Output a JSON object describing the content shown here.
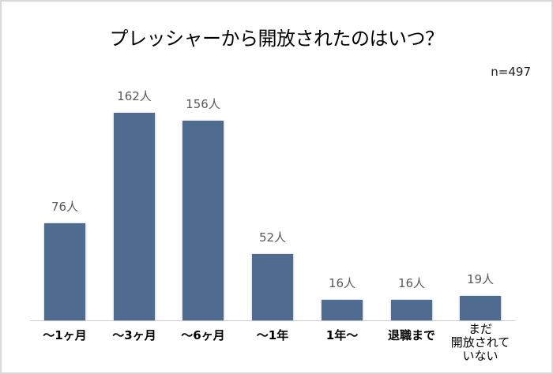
{
  "title": "プレッシャーから開放されたのはいつ？",
  "sample_size": "n=497",
  "colors": {
    "bar": "#4f6b8f",
    "value_label": "#595959",
    "axis": "#d0d0d0",
    "border": "#d9d9d9"
  },
  "bars": [
    {
      "category": "～1ヶ月",
      "value": 76,
      "label": "76人"
    },
    {
      "category": "～3ヶ月",
      "value": 162,
      "label": "162人"
    },
    {
      "category": "～6ヶ月",
      "value": 156,
      "label": "156人"
    },
    {
      "category": "～1年",
      "value": 52,
      "label": "52人"
    },
    {
      "category": "1年～",
      "value": 16,
      "label": "16人"
    },
    {
      "category": "退職まで",
      "value": 16,
      "label": "16人"
    },
    {
      "category": "まだ開放されていない",
      "value": 19,
      "label": "19人",
      "category_lines": [
        "まだ",
        "開放されて",
        "いない"
      ]
    }
  ],
  "chart_data": {
    "type": "bar",
    "title": "プレッシャーから開放されたのはいつ？",
    "subtitle": "n=497",
    "categories": [
      "～1ヶ月",
      "～3ヶ月",
      "～6ヶ月",
      "～1年",
      "1年～",
      "退職まで",
      "まだ開放されていない"
    ],
    "values": [
      76,
      162,
      156,
      52,
      16,
      16,
      19
    ],
    "data_labels": [
      "76人",
      "162人",
      "156人",
      "52人",
      "16人",
      "16人",
      "19人"
    ],
    "unit": "人",
    "xlabel": "",
    "ylabel": "",
    "ylim": [
      0,
      170
    ],
    "grid": false,
    "legend": "none",
    "y_axis_visible": false
  }
}
